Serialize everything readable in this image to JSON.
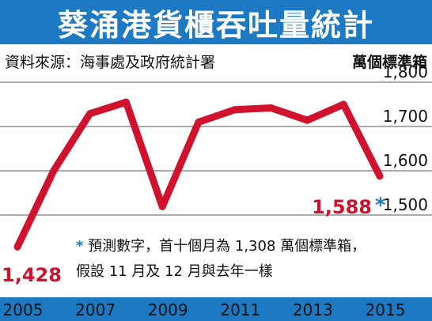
{
  "title": "葵涌港貨櫃吞吐量統計",
  "source": "資料來源：海事處及政府統計署",
  "unit": "萬個標準箱",
  "note": {
    "star": "*",
    "line1": "預測數字，首十個月為 1,308 萬個標準箱，",
    "line2": "假設 11 月及 12 月與去年一樣"
  },
  "colors": {
    "header": "#1d7ac2",
    "line": "#d0122c",
    "star": "#1d7ac2",
    "grid": "#555555"
  },
  "chart_data": {
    "type": "line",
    "title": "葵涌港貨櫃吞吐量統計",
    "ylabel": "萬個標準箱",
    "x": [
      2005,
      2006,
      2007,
      2008,
      2009,
      2010,
      2011,
      2012,
      2013,
      2014,
      2015
    ],
    "x_tick_labels": [
      "2005",
      "2007",
      "2009",
      "2011",
      "2013",
      "2015"
    ],
    "y_tick_labels": [
      "1,800",
      "1,700",
      "1,600",
      "1,500"
    ],
    "series": [
      {
        "values": [
          1428,
          1600,
          1729,
          1755,
          1519,
          1710,
          1738,
          1742,
          1714,
          1750,
          1588
        ]
      }
    ],
    "data_labels": [
      {
        "x": 2005,
        "text": "1,428"
      },
      {
        "x": 2015,
        "text": "1,588",
        "mark": "*"
      }
    ],
    "ylim": [
      1400,
      1800
    ],
    "xlim": [
      2005,
      2015
    ],
    "grid": "horizontal"
  }
}
